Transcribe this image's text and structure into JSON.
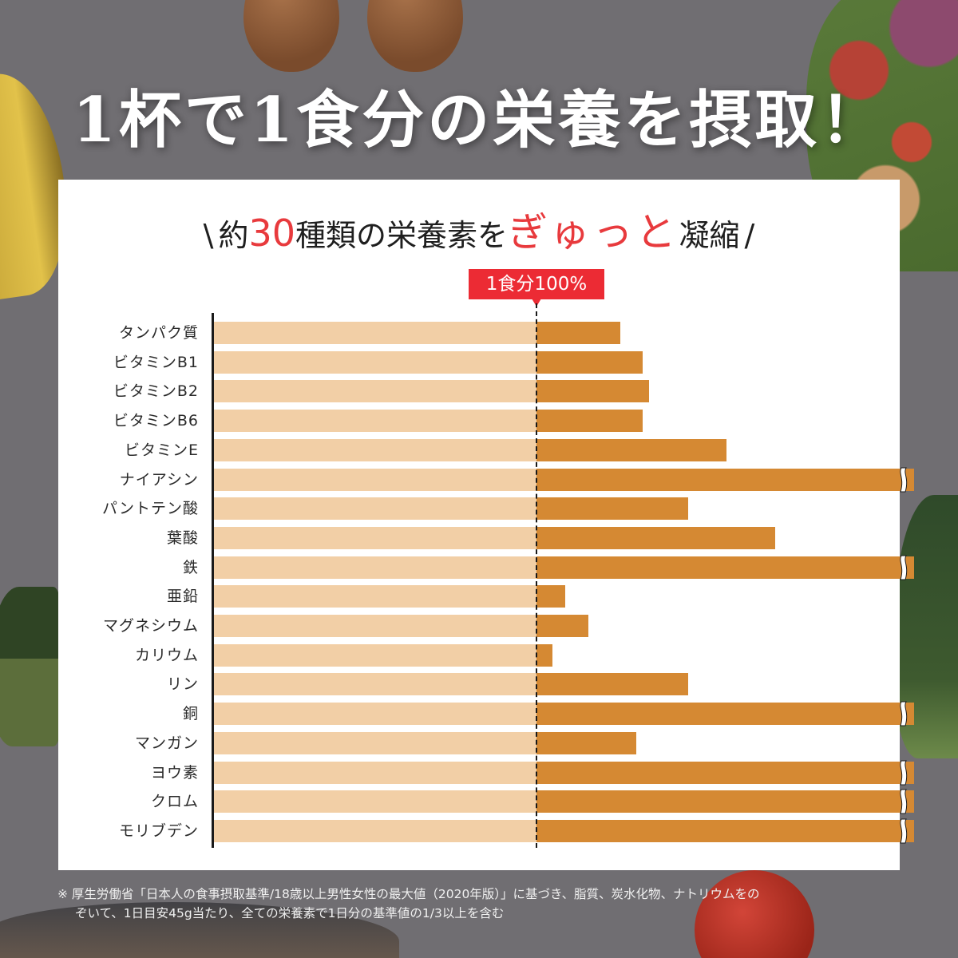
{
  "title": "1杯で1食分の栄養を摂取！",
  "subtitle": {
    "prefix_slash": "\\",
    "part1": "約",
    "number": "30",
    "part2": "種類の栄養素を",
    "highlight": "ぎゅっと",
    "part3": "凝縮",
    "suffix_slash": "/"
  },
  "callout": "1食分100%",
  "colors": {
    "base_bar": "#f2cfa6",
    "extra_bar": "#d58933",
    "accent_red": "#ec2b34",
    "background": "#706e72"
  },
  "footnote": {
    "line1": "※ 厚生労働省「日本人の食事摂取基準/18歳以上男性女性の最大値（2020年版）」に基づき、脂質、炭水化物、ナトリウムをの",
    "line2": "ぞいて、1日目安45g当たり、全ての栄養素で1日分の基準値の1/3以上を含む"
  },
  "chart_data": {
    "type": "bar",
    "orientation": "horizontal",
    "title": "約30種類の栄養素をぎゅっと凝縮",
    "reference_line": {
      "value": 100,
      "label": "1食分100%"
    },
    "xlabel": "",
    "ylabel": "",
    "xlim": [
      0,
      200
    ],
    "grid": false,
    "legend": null,
    "categories": [
      "タンパク質",
      "ビタミンB1",
      "ビタミンB2",
      "ビタミンB6",
      "ビタミンE",
      "ナイアシン",
      "パントテン酸",
      "葉酸",
      "鉄",
      "亜鉛",
      "マグネシウム",
      "カリウム",
      "リン",
      "銅",
      "マンガン",
      "ヨウ素",
      "クロム",
      "モリブデン"
    ],
    "values": [
      126,
      133,
      135,
      133,
      159,
      200,
      147,
      174,
      200,
      109,
      116,
      105,
      147,
      200,
      131,
      200,
      200,
      200
    ],
    "axis_break": [
      false,
      false,
      false,
      false,
      false,
      true,
      false,
      false,
      true,
      false,
      false,
      false,
      false,
      true,
      false,
      true,
      true,
      true
    ],
    "notes": "Values are % of one meal's reference amount, estimated from bar lengths; bars with axis break exceed the displayed range."
  }
}
